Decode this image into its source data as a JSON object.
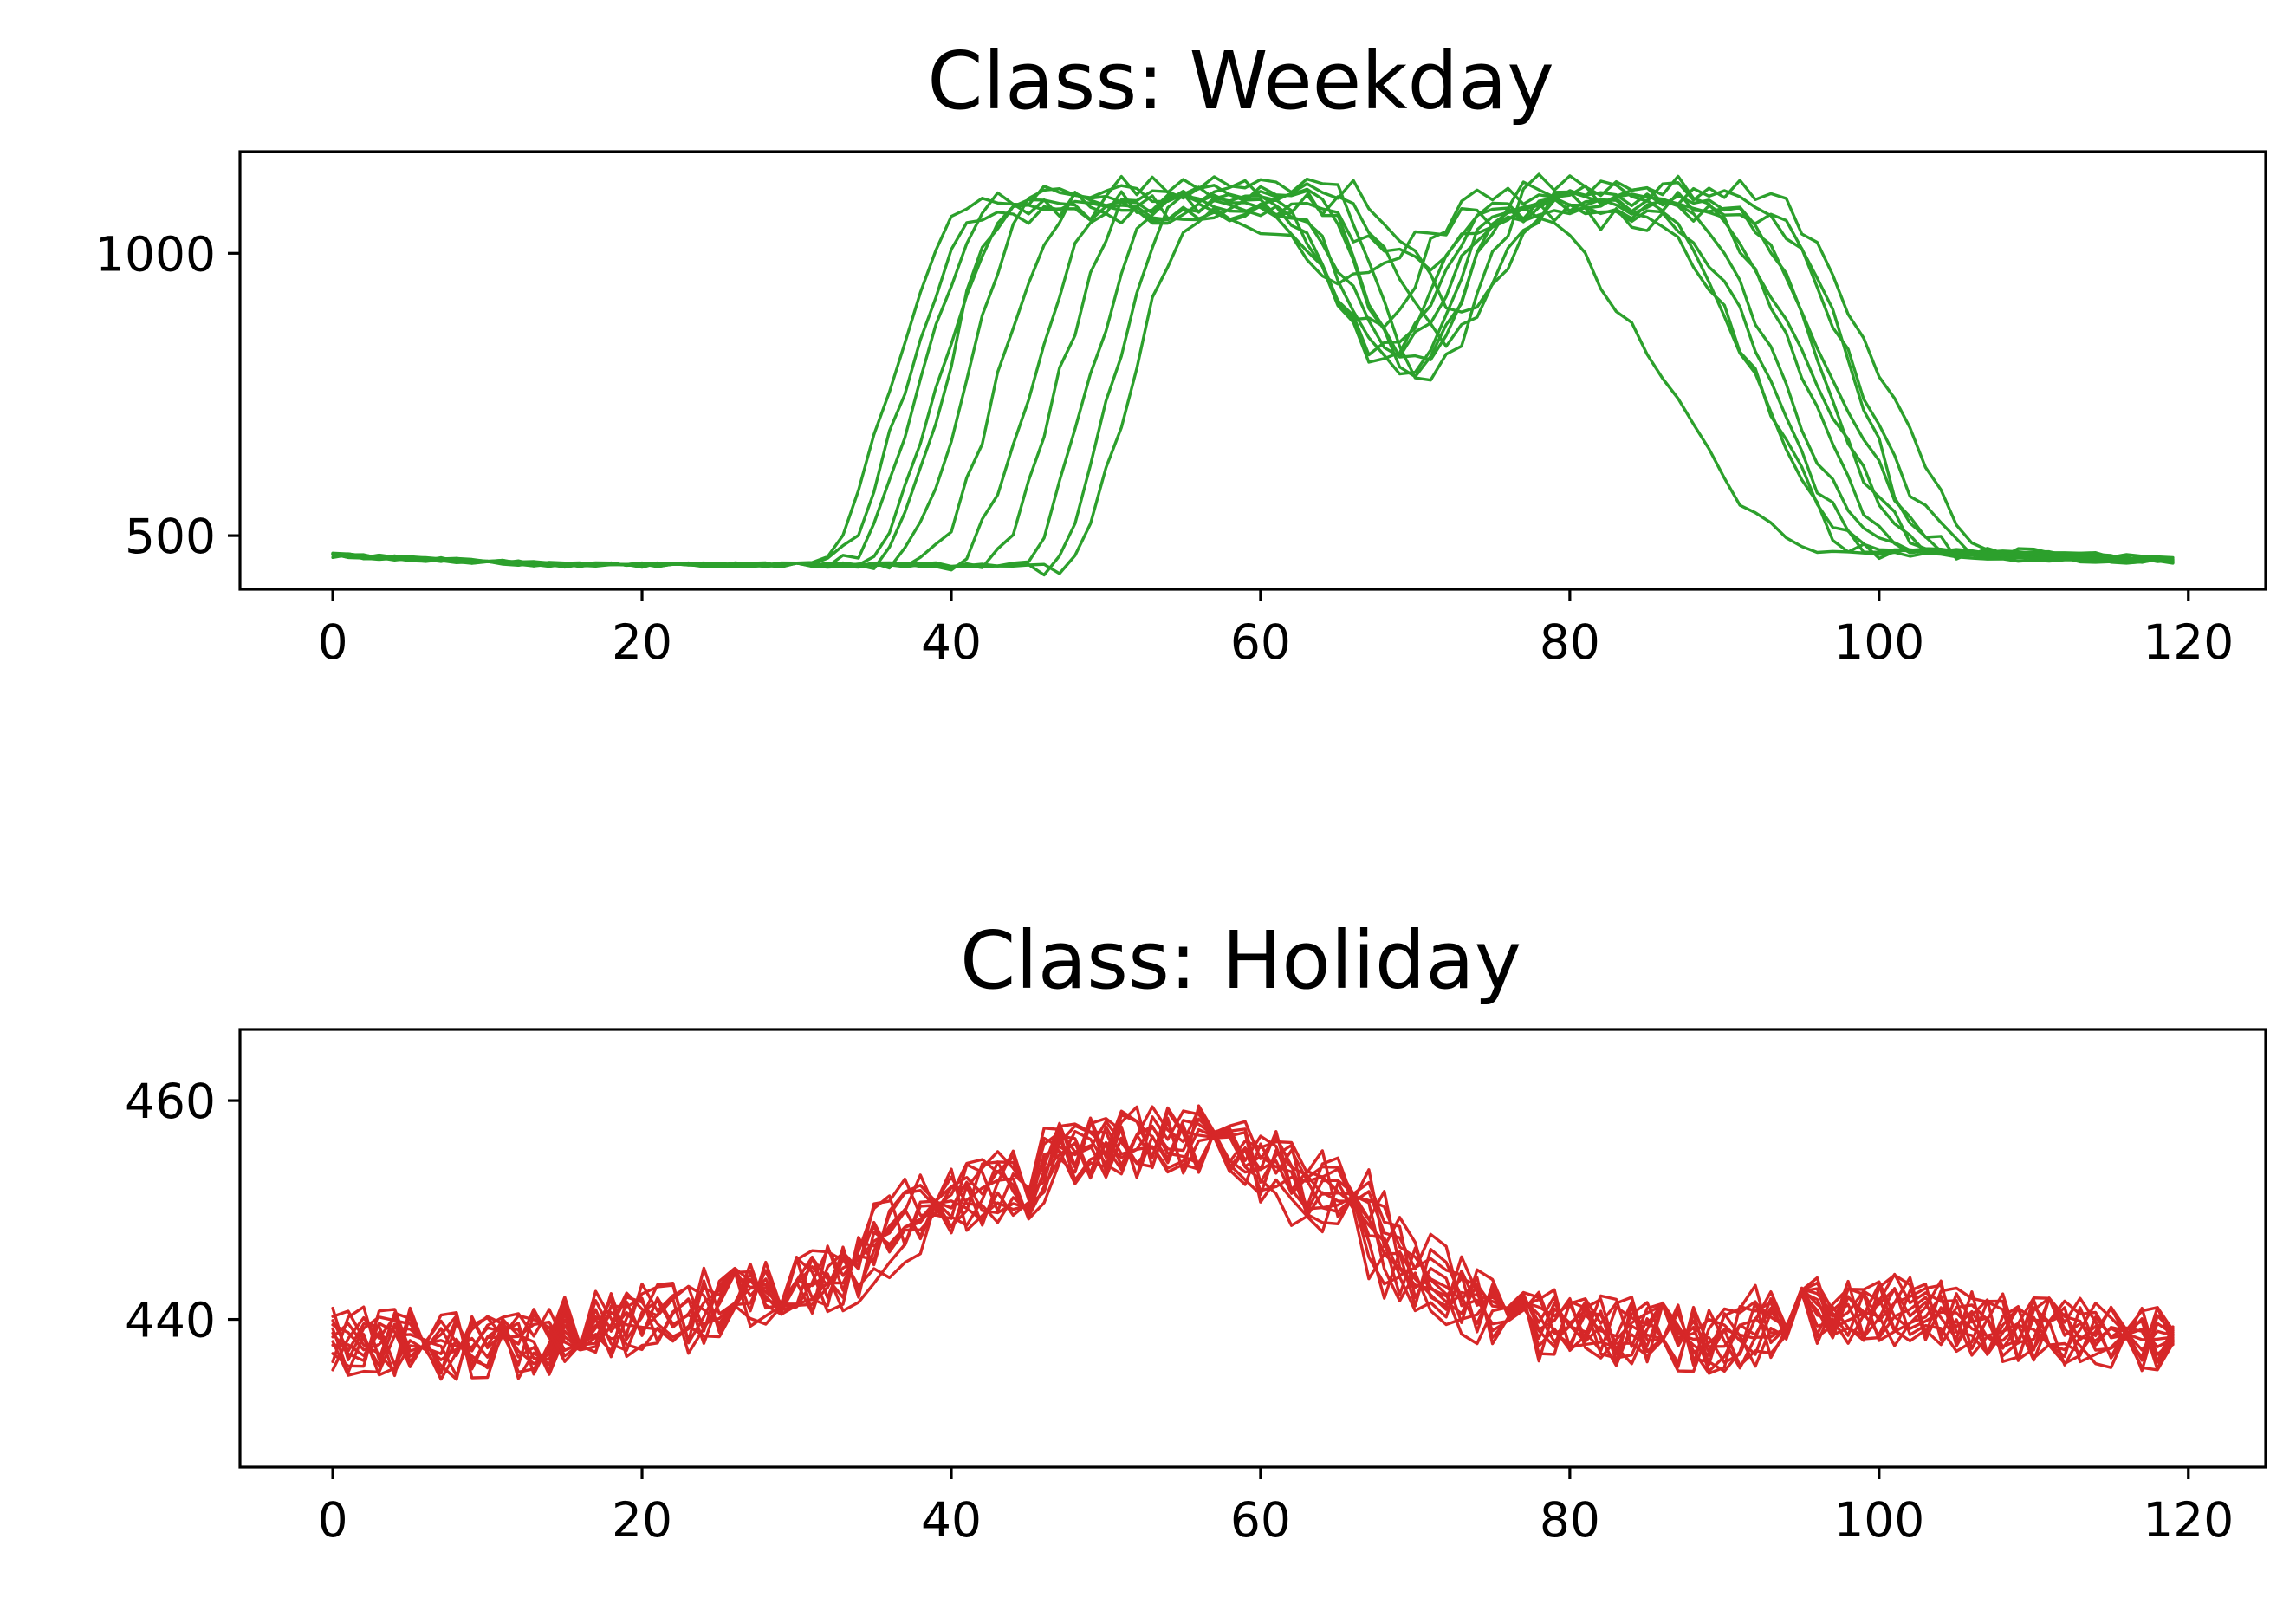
{
  "colors": {
    "weekday": "#2ca02c",
    "holiday": "#d62728",
    "axes": "#000000",
    "background": "#ffffff"
  },
  "chart_data": [
    {
      "type": "line",
      "title": "Class: Weekday",
      "xlabel": "",
      "ylabel": "",
      "xlim": [
        -6,
        125
      ],
      "ylim": [
        405,
        1180
      ],
      "x_ticks": [
        0,
        20,
        40,
        60,
        80,
        100,
        120
      ],
      "y_ticks": [
        500,
        1000
      ],
      "grid": false,
      "legend": "none",
      "color": "#2ca02c",
      "x_range": [
        0,
        119
      ],
      "series_count": 12,
      "series": [
        {
          "kind": "two-hump",
          "rise_start": 31,
          "rise_end": 41,
          "fall_start": 84,
          "fall_end": 100,
          "plateau": 1085,
          "dip_at": 69,
          "dip_value": 790
        },
        {
          "kind": "two-hump",
          "rise_start": 33,
          "rise_end": 43,
          "fall_start": 86,
          "fall_end": 101,
          "plateau": 1100,
          "dip_at": 70,
          "dip_value": 800
        },
        {
          "kind": "two-hump",
          "rise_start": 35,
          "rise_end": 44,
          "fall_start": 88,
          "fall_end": 102,
          "plateau": 1080,
          "dip_at": 68,
          "dip_value": 820
        },
        {
          "kind": "two-hump",
          "rise_start": 36,
          "rise_end": 46,
          "fall_start": 87,
          "fall_end": 104,
          "plateau": 1120,
          "dip_at": 71,
          "dip_value": 780
        },
        {
          "kind": "two-hump",
          "rise_start": 38,
          "rise_end": 48,
          "fall_start": 90,
          "fall_end": 103,
          "plateau": 1090,
          "dip_at": 72,
          "dip_value": 850
        },
        {
          "kind": "two-hump",
          "rise_start": 40,
          "rise_end": 50,
          "fall_start": 85,
          "fall_end": 99,
          "plateau": 1070,
          "dip_at": 69,
          "dip_value": 830
        },
        {
          "kind": "two-hump",
          "rise_start": 42,
          "rise_end": 52,
          "fall_start": 91,
          "fall_end": 106,
          "plateau": 1105,
          "dip_at": 70,
          "dip_value": 815
        },
        {
          "kind": "two-hump",
          "rise_start": 44,
          "rise_end": 54,
          "fall_start": 89,
          "fall_end": 105,
          "plateau": 1095,
          "dip_at": 67,
          "dip_value": 870
        },
        {
          "kind": "two-hump",
          "rise_start": 46,
          "rise_end": 55,
          "fall_start": 92,
          "fall_end": 108,
          "plateau": 1110,
          "dip_at": 73,
          "dip_value": 900
        },
        {
          "kind": "two-hump",
          "rise_start": 47,
          "rise_end": 56,
          "fall_start": 86,
          "fall_end": 100,
          "plateau": 1060,
          "dip_at": 66,
          "dip_value": 960
        },
        {
          "kind": "early-fall",
          "rise_start": 34,
          "rise_end": 44,
          "fall_start": 76,
          "fall_end": 96,
          "plateau": 1080,
          "dip_at": 70,
          "dip_value": 980
        },
        {
          "kind": "two-hump",
          "rise_start": 32,
          "rise_end": 42,
          "fall_start": 93,
          "fall_end": 104,
          "plateau": 1075,
          "dip_at": 68,
          "dip_value": 805
        }
      ],
      "baseline_start": 465,
      "baseline_min": 448,
      "baseline_end": 455
    },
    {
      "type": "line",
      "title": "Class: Holiday",
      "xlabel": "",
      "ylabel": "",
      "xlim": [
        -6,
        125
      ],
      "ylim": [
        426.5,
        466.5
      ],
      "x_ticks": [
        0,
        20,
        40,
        60,
        80,
        100,
        120
      ],
      "y_ticks": [
        440,
        460
      ],
      "grid": false,
      "legend": "none",
      "color": "#d62728",
      "x_range": [
        0,
        119
      ],
      "series_count": 12,
      "profile_x": [
        0,
        10,
        20,
        30,
        40,
        50,
        55,
        60,
        65,
        70,
        75,
        80,
        90,
        95,
        100,
        110,
        119
      ],
      "profile_y": [
        438,
        437.5,
        440,
        443,
        451,
        456,
        456.5,
        454,
        451,
        444,
        440.5,
        439,
        438,
        441,
        441,
        439,
        438
      ],
      "noise_amplitude": 3.2
    }
  ]
}
